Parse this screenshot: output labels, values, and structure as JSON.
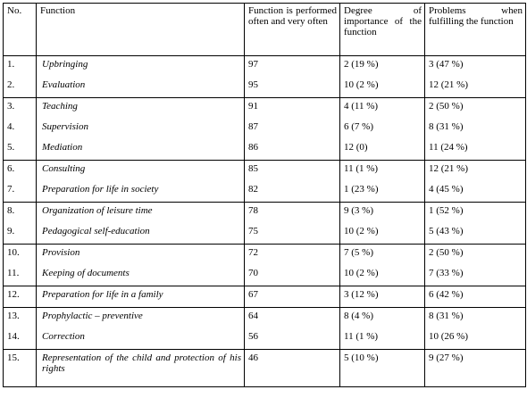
{
  "table": {
    "header": [
      "No.",
      "Function",
      "Function is performed often and very often",
      "Degree of importance of the function",
      "Problems when fulfilling the function"
    ],
    "rows": [
      [
        "1.",
        "Upbringing",
        97,
        "2  (19 %)",
        "3 (47 %)"
      ],
      [
        "2.",
        "Evaluation",
        95,
        "10  (2 %)",
        "12 (21 %)"
      ],
      [
        "3.",
        "Teaching",
        91,
        "4  (11 %)",
        "2 (50 %)"
      ],
      [
        "4.",
        "Supervision",
        87,
        "6  (7 %)",
        "8 (31 %)"
      ],
      [
        "5.",
        "Mediation",
        86,
        "12  (0)",
        "11 (24 %)"
      ],
      [
        "6.",
        "Consulting",
        85,
        "11  (1 %)",
        "12 (21 %)"
      ],
      [
        "7.",
        "Preparation for life in society",
        82,
        "1  (23 %)",
        "4 (45 %)"
      ],
      [
        "8.",
        "Organization of leisure time",
        78,
        "9  (3 %)",
        "1 (52 %)"
      ],
      [
        "9.",
        "Pedagogical self-education",
        75,
        "10  (2 %)",
        "5 (43 %)"
      ],
      [
        "10.",
        "Provision",
        72,
        "7  (5 %)",
        "2 (50 %)"
      ],
      [
        "11.",
        "Keeping of documents",
        70,
        "10  (2 %)",
        "7 (33 %)"
      ],
      [
        "12.",
        "Preparation for life in a family",
        67,
        "3  (12 %)",
        "6 (42 %)"
      ],
      [
        "13.",
        "Prophylactic – preventive",
        64,
        "8  (4 %)",
        "8 (31 %)"
      ],
      [
        "14.",
        "Correction",
        56,
        "11  (1 %)",
        "10 (26 %)"
      ],
      [
        "15.",
        "Representation of the child and protection of his rights",
        46,
        "5  (10 %)",
        "9 (27 %)"
      ]
    ]
  }
}
